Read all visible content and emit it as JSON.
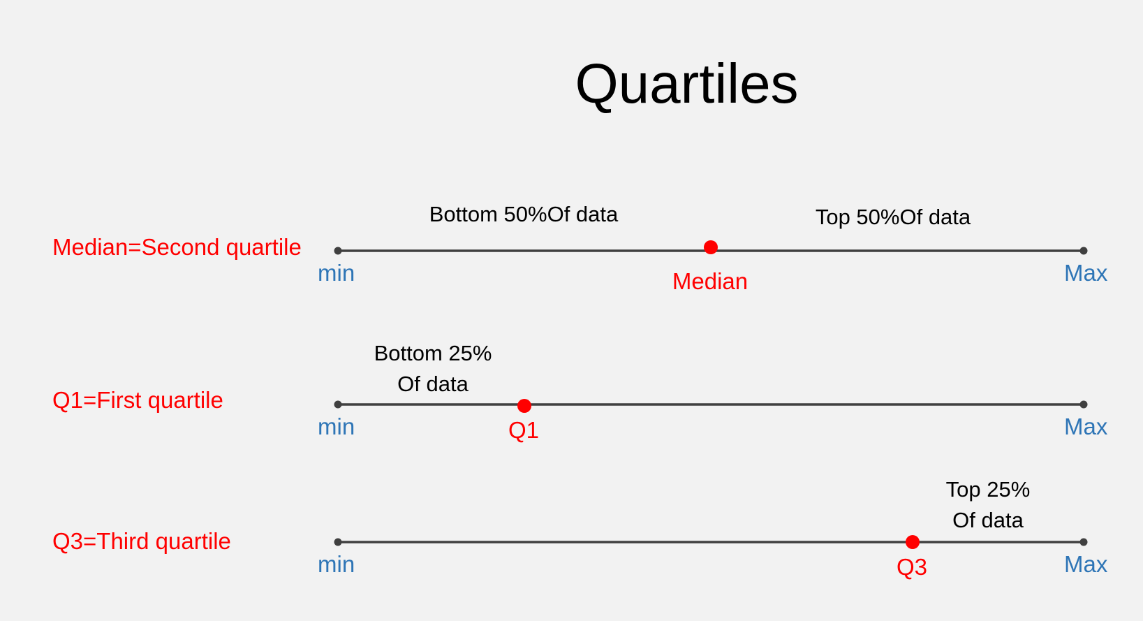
{
  "title": "Quartiles",
  "colors": {
    "background": "#f2f2f2",
    "line": "#404040",
    "endpoint_label": "#2e75b6",
    "marker": "#ff0000",
    "row_label": "#ff0000",
    "region_label": "#000000"
  },
  "rows": [
    {
      "label": "Median=Second quartile",
      "min_label": "min",
      "max_label": "Max",
      "marker_label": "Median",
      "marker_fraction": 0.5,
      "regions": [
        {
          "line1": "Bottom 50%Of data",
          "line2": ""
        },
        {
          "line1": "Top 50%Of data",
          "line2": ""
        }
      ]
    },
    {
      "label": "Q1=First quartile",
      "min_label": "min",
      "max_label": "Max",
      "marker_label": "Q1",
      "marker_fraction": 0.25,
      "regions": [
        {
          "line1": "Bottom 25%",
          "line2": "Of data"
        }
      ]
    },
    {
      "label": "Q3=Third quartile",
      "min_label": "min",
      "max_label": "Max",
      "marker_label": "Q3",
      "marker_fraction": 0.77,
      "regions": [
        {
          "line1": "Top 25%",
          "line2": "Of data"
        }
      ]
    }
  ]
}
